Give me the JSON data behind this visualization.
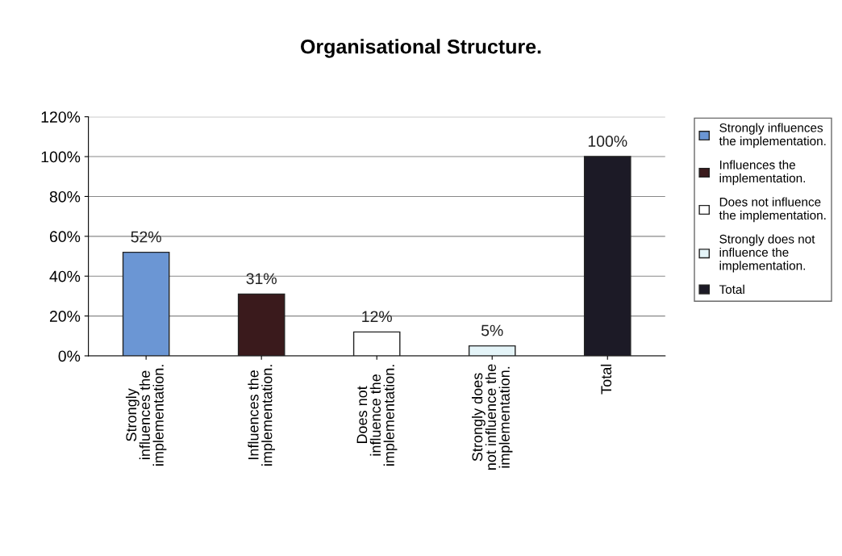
{
  "chart_data": {
    "type": "bar",
    "title": "Organisational Structure.",
    "categories": [
      "Strongly\ninfluences the\nimplementation.",
      "Influences the\nimplementation.",
      "Does not\ninfluence the\nimplementation.",
      "Strongly does\nnot influence the\nimplementation.",
      "Total"
    ],
    "series": [
      {
        "name": "Strongly influences\nthe implementation.",
        "color": "#6b96d4",
        "values": [
          52,
          null,
          null,
          null,
          null
        ],
        "value_labels": [
          "52%",
          null,
          null,
          null,
          null
        ]
      },
      {
        "name": "Influences the\nimplementation.",
        "color": "#3a1a1c",
        "values": [
          null,
          31,
          null,
          null,
          null
        ],
        "value_labels": [
          null,
          "31%",
          null,
          null,
          null
        ]
      },
      {
        "name": "Does not influence\nthe implementation.",
        "color": "#ffffff",
        "values": [
          null,
          null,
          12,
          null,
          null
        ],
        "value_labels": [
          null,
          null,
          "12%",
          null,
          null
        ]
      },
      {
        "name": "Strongly does not\ninfluence the\nimplementation.",
        "color": "#e4f4f8",
        "values": [
          null,
          null,
          null,
          5,
          null
        ],
        "value_labels": [
          null,
          null,
          null,
          "5%",
          null
        ]
      },
      {
        "name": "Total",
        "color": "#1c1a26",
        "values": [
          null,
          null,
          null,
          null,
          100
        ],
        "value_labels": [
          null,
          null,
          null,
          null,
          "100%"
        ]
      }
    ],
    "ylim": [
      0,
      120
    ],
    "yticks": [
      {
        "value": 0,
        "label": "0%"
      },
      {
        "value": 20,
        "label": "20%"
      },
      {
        "value": 40,
        "label": "40%"
      },
      {
        "value": 60,
        "label": "60%"
      },
      {
        "value": 80,
        "label": "80%"
      },
      {
        "value": 100,
        "label": "100%"
      },
      {
        "value": 120,
        "label": "120%"
      }
    ],
    "grid": "y",
    "legend": "top right"
  }
}
